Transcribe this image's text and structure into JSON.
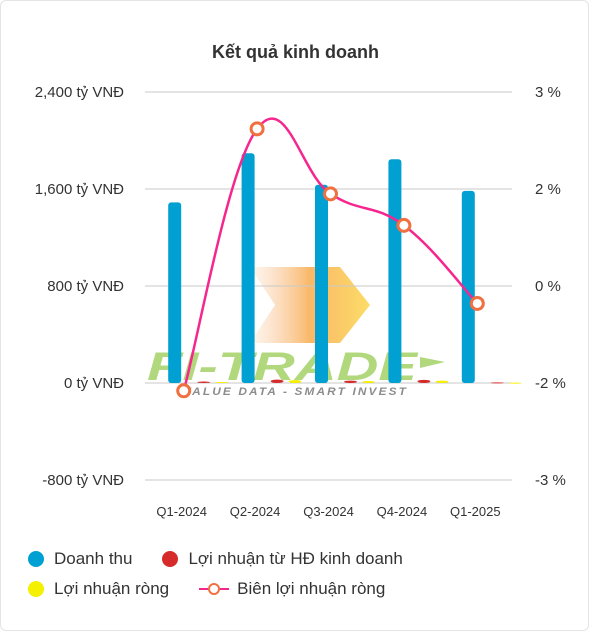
{
  "title": "Kết quả kinh doanh",
  "chart_data": {
    "type": "bar",
    "title": "Kết quả kinh doanh",
    "categories": [
      "Q1-2024",
      "Q2-2024",
      "Q3-2024",
      "Q4-2024",
      "Q1-2025"
    ],
    "series": [
      {
        "name": "Doanh thu",
        "kind": "bar",
        "axis": "left",
        "color": "#00a0d2",
        "values": [
          1490,
          1895,
          1635,
          1845,
          1585
        ]
      },
      {
        "name": "Lợi nhuận từ HĐ kinh doanh",
        "kind": "bar",
        "axis": "left",
        "color": "#d62b2b",
        "values": [
          12,
          28,
          20,
          26,
          5
        ]
      },
      {
        "name": "Lợi nhuận ròng",
        "kind": "bar",
        "axis": "left",
        "color": "#f5f000",
        "values": [
          8,
          24,
          16,
          20,
          3
        ]
      },
      {
        "name": "Biên lợi nhuận ròng",
        "kind": "line",
        "axis": "right",
        "color": "#f5278f",
        "marker_color": "#f07040",
        "values": [
          -2.08,
          2.62,
          1.9,
          1.25,
          -0.36
        ]
      }
    ],
    "y_left": {
      "min": -800,
      "max": 2400,
      "ticks": [
        2400,
        1600,
        800,
        0,
        -800
      ],
      "tick_labels": [
        "2,400 tỷ VNĐ",
        "1,600 tỷ VNĐ",
        "800 tỷ VNĐ",
        "0 tỷ VNĐ",
        "-800 tỷ VNĐ"
      ]
    },
    "y_right": {
      "tick_labels": [
        "3 %",
        "2 %",
        "0 %",
        "-2 %",
        "-3 %"
      ],
      "tick_values": [
        3,
        2,
        0,
        -2,
        -3
      ]
    },
    "grid": true,
    "legend_position": "bottom"
  },
  "legend": {
    "revenue": "Doanh thu",
    "operating_profit": "Lợi nhuận từ HĐ kinh doanh",
    "net_profit": "Lợi nhuận ròng",
    "net_margin": "Biên lợi nhuận ròng"
  },
  "colors": {
    "revenue": "#00a0d2",
    "operating_profit": "#d62b2b",
    "net_profit": "#f5f000",
    "net_margin_line": "#f5278f",
    "net_margin_marker": "#f07040"
  },
  "watermark": {
    "brand": "FI-TRADE",
    "tagline": "VALUE DATA - SMART INVEST"
  }
}
